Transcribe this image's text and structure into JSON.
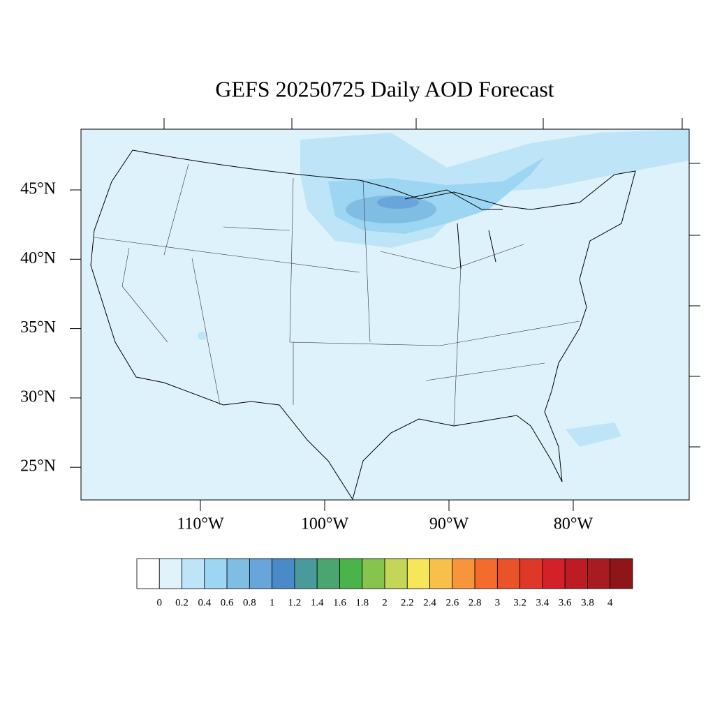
{
  "title": "GEFS 20250725 Daily AOD Forecast",
  "map": {
    "lat_ticks": [
      {
        "value": 45,
        "label": "45°N"
      },
      {
        "value": 40,
        "label": "40°N"
      },
      {
        "value": 35,
        "label": "35°N"
      },
      {
        "value": 30,
        "label": "30°N"
      },
      {
        "value": 25,
        "label": "25°N"
      }
    ],
    "lon_ticks": [
      {
        "value": -110,
        "label": "110°W"
      },
      {
        "value": -100,
        "label": "100°W"
      },
      {
        "value": -90,
        "label": "90°W"
      },
      {
        "value": -80,
        "label": "80°W"
      }
    ]
  },
  "colorbar": {
    "levels": [
      0,
      0.2,
      0.4,
      0.6,
      0.8,
      1,
      1.2,
      1.4,
      1.6,
      1.8,
      2,
      2.2,
      2.4,
      2.6,
      2.8,
      3,
      3.2,
      3.4,
      3.6,
      3.8,
      4
    ],
    "colors": [
      "#ffffff",
      "#e0f3fb",
      "#bde5f7",
      "#9dd6f2",
      "#80bde3",
      "#67a5da",
      "#4a8ac9",
      "#4a9a9c",
      "#4aa66e",
      "#4ab44a",
      "#86c44e",
      "#c4d658",
      "#f5e65a",
      "#f8c04a",
      "#f7953d",
      "#f46b2d",
      "#ea522a",
      "#de3928",
      "#d42029",
      "#be1c24",
      "#a81b20",
      "#8e1619"
    ]
  }
}
